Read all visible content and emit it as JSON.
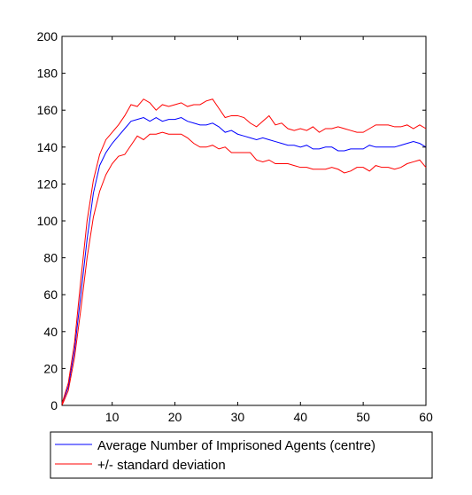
{
  "chart_data": {
    "type": "line",
    "title": "",
    "xlabel": "",
    "ylabel": "",
    "xlim": [
      2,
      60
    ],
    "ylim": [
      0,
      200
    ],
    "xticks": [
      10,
      20,
      30,
      40,
      50,
      60
    ],
    "yticks": [
      0,
      20,
      40,
      60,
      80,
      100,
      120,
      140,
      160,
      180,
      200
    ],
    "grid": false,
    "legend_position": "bottom",
    "x": [
      2,
      3,
      4,
      5,
      6,
      7,
      8,
      9,
      10,
      11,
      12,
      13,
      14,
      15,
      16,
      17,
      18,
      19,
      20,
      21,
      22,
      23,
      24,
      25,
      26,
      27,
      28,
      29,
      30,
      31,
      32,
      33,
      34,
      35,
      36,
      37,
      38,
      39,
      40,
      41,
      42,
      43,
      44,
      45,
      46,
      47,
      48,
      49,
      50,
      51,
      52,
      53,
      54,
      55,
      56,
      57,
      58,
      59,
      60
    ],
    "series": [
      {
        "name": "Average Number of Imprisoned Agents (centre)",
        "color": "#0000ff",
        "values": [
          1,
          10,
          30,
          60,
          90,
          115,
          130,
          137,
          142,
          146,
          150,
          154,
          155,
          156,
          154,
          156,
          154,
          155,
          155,
          156,
          154,
          153,
          152,
          152,
          153,
          151,
          148,
          149,
          147,
          146,
          145,
          144,
          145,
          144,
          143,
          142,
          141,
          141,
          140,
          141,
          139,
          139,
          140,
          140,
          138,
          138,
          139,
          139,
          139,
          141,
          140,
          140,
          140,
          140,
          141,
          142,
          143,
          142,
          140
        ]
      },
      {
        "name": "+/- standard deviation (upper)",
        "color": "#ff0000",
        "values": [
          1,
          12,
          34,
          68,
          100,
          122,
          136,
          144,
          148,
          152,
          157,
          163,
          162,
          166,
          164,
          160,
          163,
          162,
          163,
          164,
          162,
          163,
          163,
          165,
          166,
          161,
          156,
          157,
          157,
          156,
          153,
          151,
          154,
          157,
          152,
          153,
          150,
          149,
          150,
          149,
          151,
          148,
          150,
          150,
          151,
          150,
          149,
          148,
          148,
          150,
          152,
          152,
          152,
          151,
          151,
          152,
          150,
          152,
          150
        ]
      },
      {
        "name": "+/- standard deviation (lower)",
        "color": "#ff0000",
        "values": [
          0,
          8,
          26,
          52,
          80,
          102,
          116,
          125,
          131,
          135,
          136,
          141,
          146,
          144,
          147,
          147,
          148,
          147,
          147,
          147,
          145,
          142,
          140,
          140,
          141,
          139,
          140,
          137,
          137,
          137,
          137,
          133,
          132,
          133,
          131,
          131,
          131,
          130,
          129,
          129,
          128,
          128,
          128,
          129,
          128,
          126,
          127,
          129,
          129,
          127,
          130,
          129,
          129,
          128,
          129,
          131,
          132,
          133,
          129
        ]
      }
    ],
    "legend": [
      {
        "label": "Average Number of Imprisoned Agents (centre)",
        "color": "#0000ff"
      },
      {
        "label": "+/- standard deviation",
        "color": "#ff0000"
      }
    ]
  }
}
